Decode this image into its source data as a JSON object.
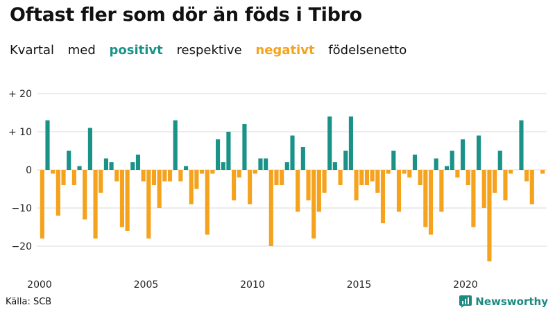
{
  "title": "Oftast fler som dör än föds i Tibro",
  "subtitle": {
    "part1": "Kvartal",
    "part2": "med",
    "positive": "positivt",
    "part3": "respektive",
    "negative": "negativt",
    "part4": "födelsenetto"
  },
  "colors": {
    "positive": "#1a9288",
    "negative": "#f5a21d",
    "text": "#111111",
    "grid": "#d9d9d9"
  },
  "source": "Källa: SCB",
  "brand": {
    "name": "Newsworthy",
    "icon": "newsworthy-logo-icon"
  },
  "chart_data": {
    "type": "bar",
    "title": "Oftast fler som dör än föds i Tibro",
    "subtitle": "Kvartal med positivt respektive negativt födelsenetto",
    "xlabel": "",
    "ylabel": "",
    "x_start": "2000Q1",
    "x_tick_labels": [
      "2000",
      "2005",
      "2010",
      "2015",
      "2020"
    ],
    "y_tick_labels": [
      "+ 20",
      "+ 10",
      "0",
      "−10",
      "−20"
    ],
    "y_ticks": [
      20,
      10,
      0,
      -10,
      -20
    ],
    "ylim": [
      -25,
      20
    ],
    "grid": true,
    "values": [
      -18,
      13,
      -1,
      -12,
      -4,
      5,
      -4,
      1,
      -13,
      11,
      -18,
      -6,
      3,
      2,
      -3,
      -15,
      -16,
      2,
      4,
      -3,
      -18,
      -4,
      -10,
      -3,
      -3,
      13,
      -3,
      1,
      -9,
      -5,
      -1,
      -17,
      -1,
      8,
      2,
      10,
      -8,
      -2,
      12,
      -9,
      -1,
      3,
      3,
      -20,
      -4,
      -4,
      2,
      9,
      -11,
      6,
      -8,
      -18,
      -11,
      -6,
      14,
      2,
      -4,
      5,
      14,
      -8,
      -4,
      -4,
      -3,
      -6,
      -14,
      -1,
      5,
      -11,
      -1,
      -2,
      4,
      -4,
      -15,
      -17,
      3,
      -11,
      1,
      5,
      -2,
      8,
      -4,
      -15,
      9,
      -10,
      -24,
      -6,
      5,
      -8,
      -1,
      0,
      13,
      -3,
      -9,
      0,
      -1
    ]
  }
}
